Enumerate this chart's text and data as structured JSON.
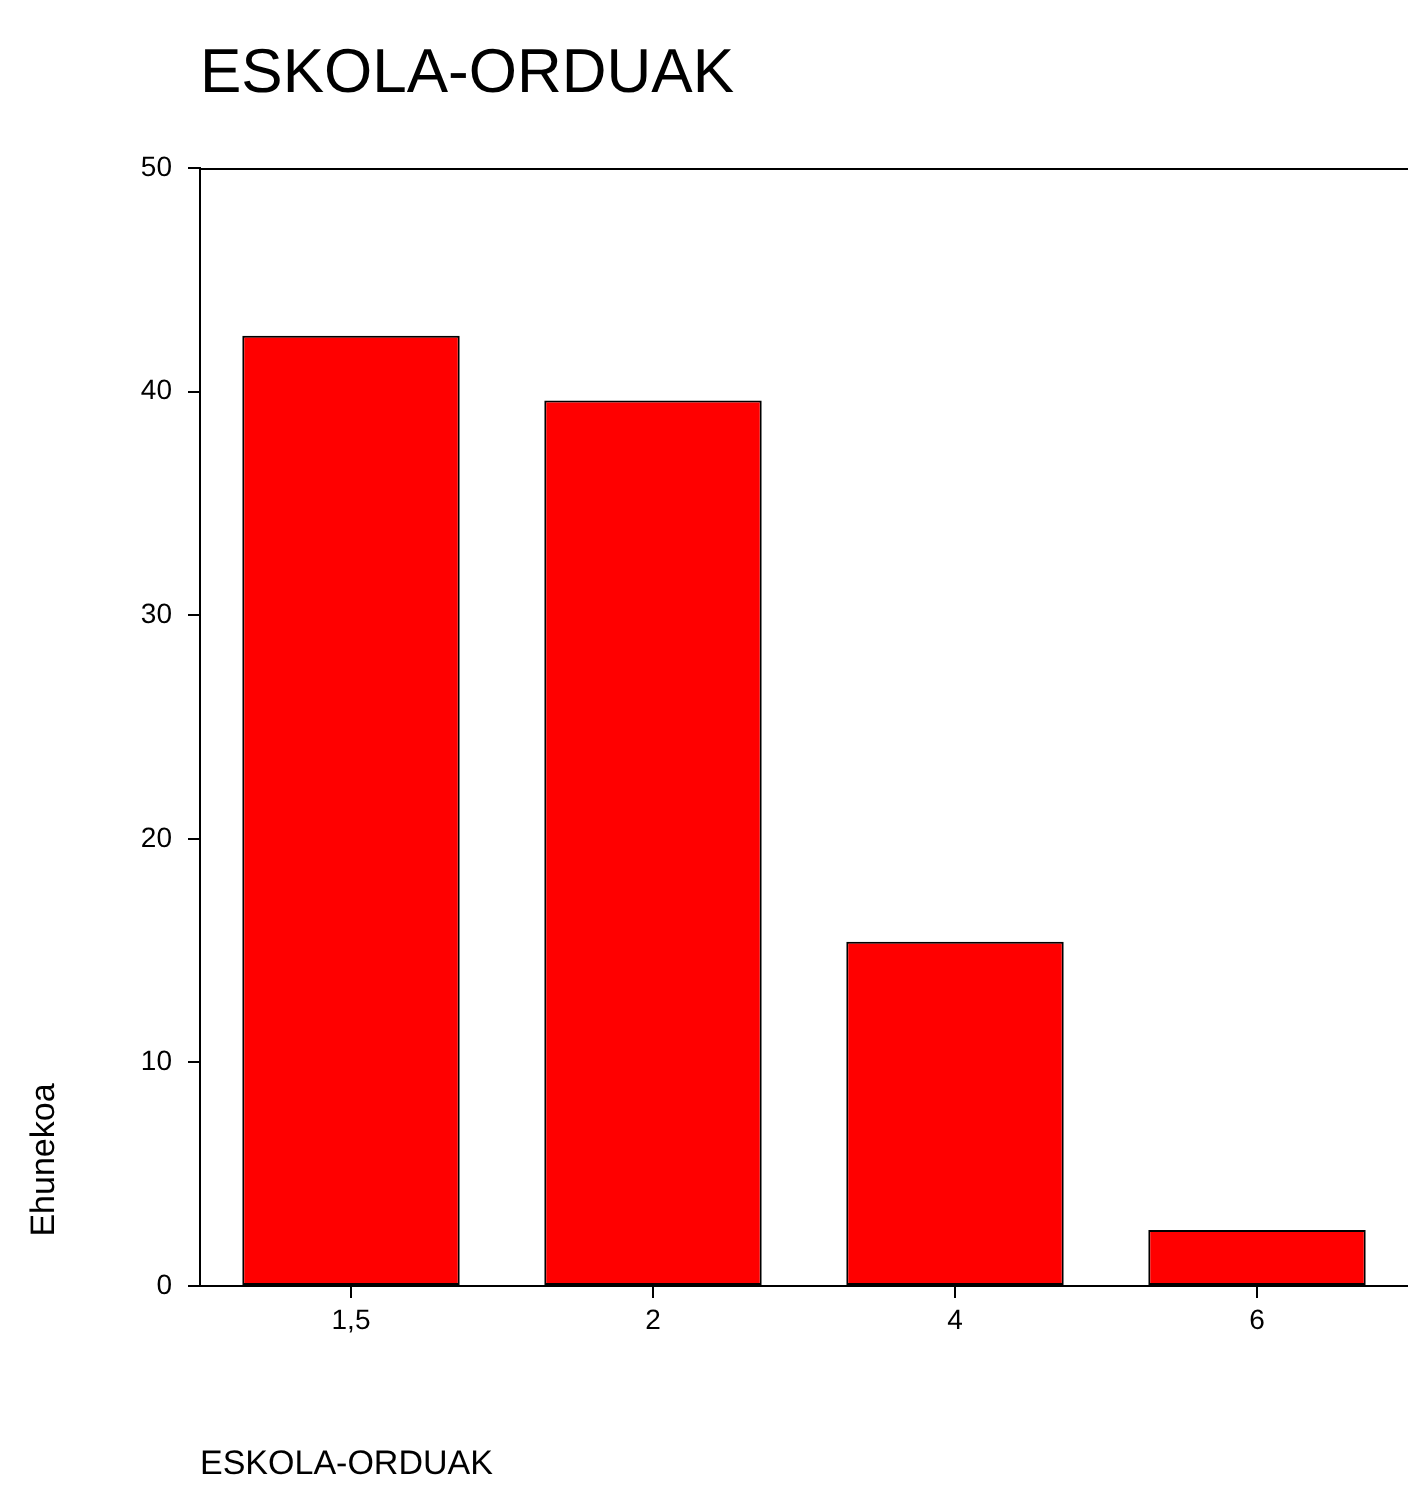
{
  "chart_data": {
    "type": "bar",
    "title": "ESKOLA-ORDUAK",
    "xlabel": "ESKOLA-ORDUAK",
    "ylabel": "Ehunekoa",
    "categories": [
      "1,5",
      "2",
      "4",
      "6"
    ],
    "values": [
      42.5,
      39.6,
      15.4,
      2.5
    ],
    "color": "#ff0000",
    "ylim": [
      0,
      50
    ],
    "yticks": [
      0,
      10,
      20,
      30,
      40,
      50
    ],
    "grid": false,
    "legend": false
  }
}
